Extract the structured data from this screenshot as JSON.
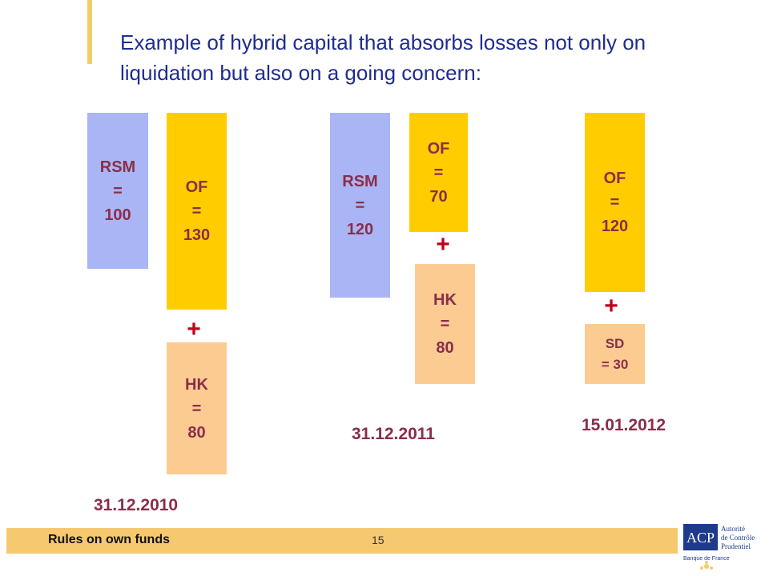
{
  "title": "Example of hybrid capital that absorbs losses not only on liquidation but also on a going concern:",
  "panels": [
    {
      "date": "31.12.2010",
      "rsm": [
        "RSM",
        "=",
        "100"
      ],
      "of": [
        "OF",
        "=",
        "130"
      ],
      "plus": "+",
      "hk": [
        "HK",
        "=",
        "80"
      ]
    },
    {
      "date": "31.12.2011",
      "rsm": [
        "RSM",
        "=",
        "120"
      ],
      "of": [
        "OF",
        "=",
        "70"
      ],
      "plus": "+",
      "hk": [
        "HK",
        "=",
        "80"
      ]
    },
    {
      "date": "15.01.2012",
      "of": [
        "OF",
        "=",
        "120"
      ],
      "plus": "+",
      "sd": [
        "SD",
        "= 30"
      ]
    }
  ],
  "footer": {
    "label": "Rules on own funds",
    "page": "15"
  },
  "logo": {
    "acronym": "ACP",
    "line1": "Autorité",
    "line2": "de Contrôle",
    "line3": "Prudentiel",
    "sub": "Banque de France"
  },
  "colors": {
    "title": "#1f2c8f",
    "box_text": "#8a2e4a",
    "rsm_fill": "#aab5f5",
    "of_fill": "#ffcc00",
    "hk_fill": "#fccb92",
    "plus": "#c0001a",
    "footer_band": "#f6c970",
    "accent_bar": "#f3cc6a",
    "logo_blue": "#1e3a8a"
  }
}
